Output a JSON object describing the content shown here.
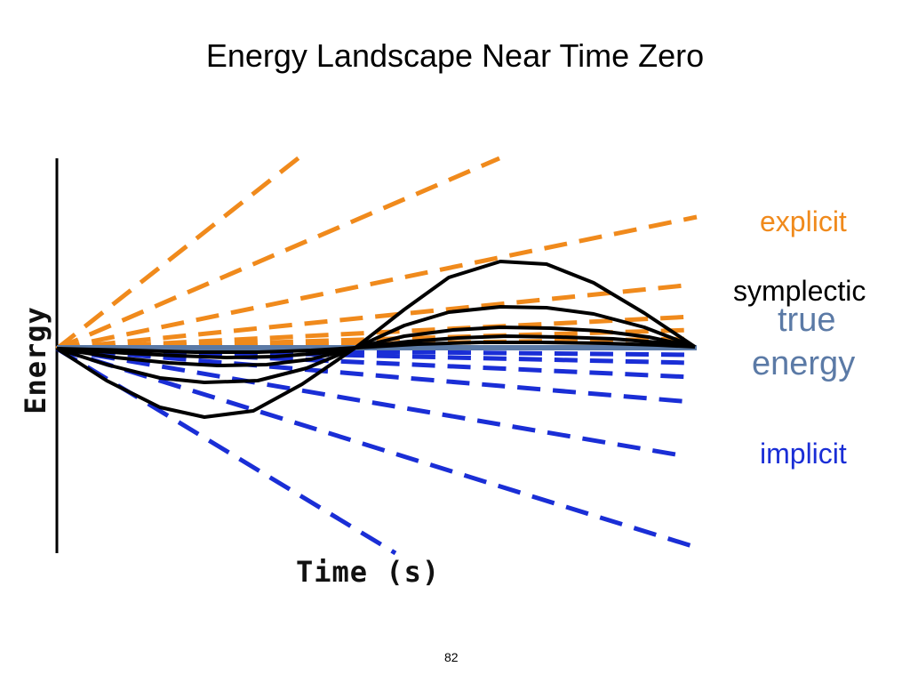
{
  "slide": {
    "title": "Energy Landscape Near Time Zero",
    "page_number": "82"
  },
  "axes": {
    "x_label": "Time (s)",
    "y_label": "Energy"
  },
  "legend": {
    "explicit": "explicit",
    "symplectic": "symplectic",
    "true_line1": "true",
    "true_line2": "energy",
    "implicit": "implicit"
  },
  "colors": {
    "explicit": "#f08a1c",
    "implicit": "#1a2ed6",
    "true_energy": "#5b7aa6",
    "symplectic": "#000000"
  }
}
